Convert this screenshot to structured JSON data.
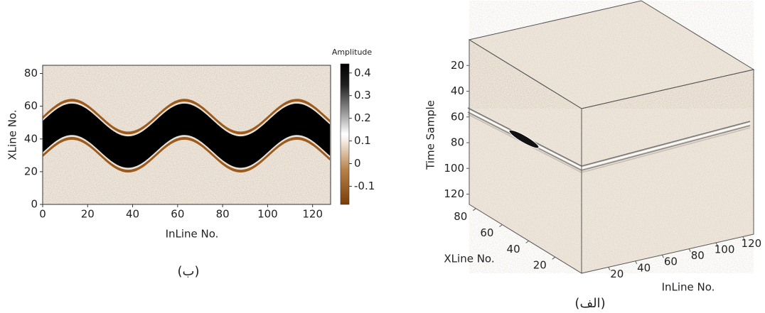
{
  "chart_data": [
    {
      "type": "heatmap",
      "xlabel": "InLine No.",
      "ylabel": "XLine No.",
      "caption": "(ب)",
      "xlim": [
        0,
        128
      ],
      "xticks": [
        0,
        20,
        40,
        60,
        80,
        100,
        120
      ],
      "ylim": [
        0,
        85
      ],
      "yticks": [
        0,
        20,
        40,
        60,
        80
      ],
      "colorbar": {
        "title": "Amplitude",
        "lim": [
          -0.18,
          0.44
        ],
        "ticks": [
          -0.1,
          0,
          0.1,
          0.2,
          0.3,
          0.4
        ]
      }
    },
    {
      "type": "cube",
      "zlabel": "Time Sample",
      "ylabel": "XLine No.",
      "xlabel": "InLine No.",
      "caption": "(الف)",
      "zlim": [
        0,
        128
      ],
      "zticks": [
        20,
        40,
        60,
        80,
        100,
        120
      ],
      "ylim": [
        0,
        85
      ],
      "yticks": [
        20,
        40,
        60,
        80
      ],
      "xlim": [
        0,
        128
      ],
      "xticks": [
        20,
        40,
        60,
        80,
        100,
        120
      ]
    }
  ]
}
